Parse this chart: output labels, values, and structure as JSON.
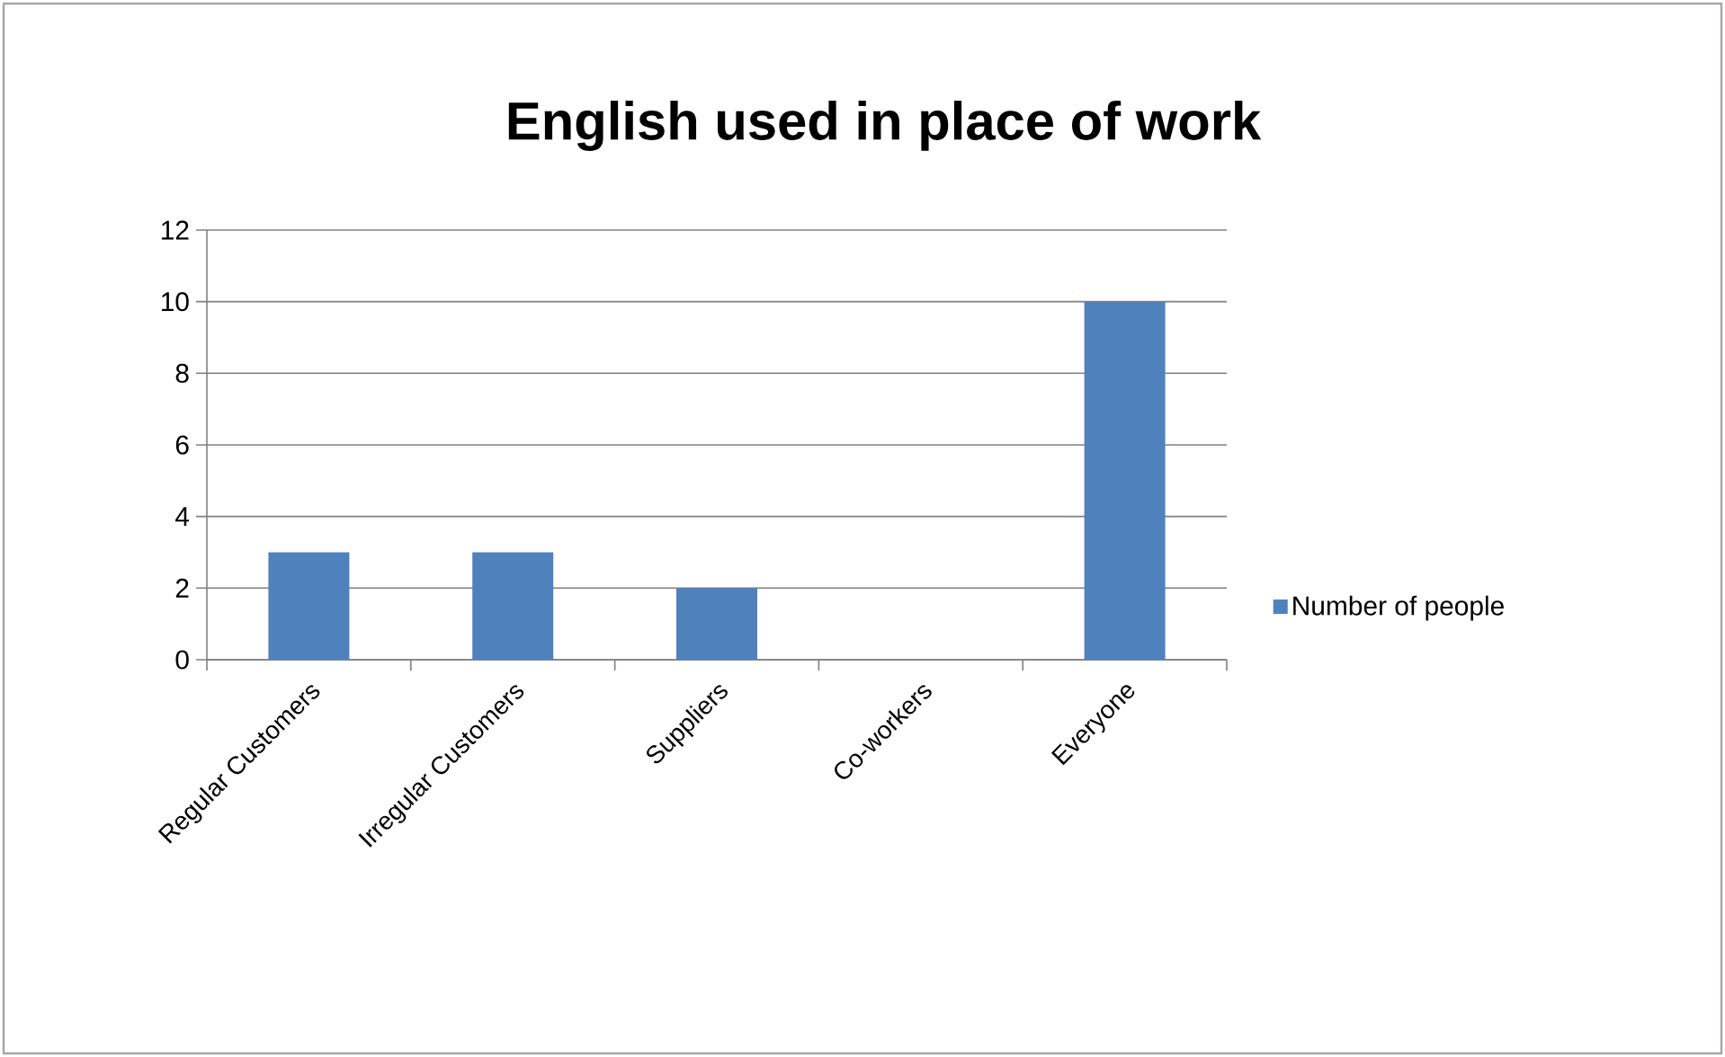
{
  "chart_data": {
    "type": "bar",
    "title": "English used in place of work",
    "categories": [
      "Regular Customers",
      "Irregular Customers",
      "Suppliers",
      "Co-workers",
      "Everyone"
    ],
    "series": [
      {
        "name": "Number of people",
        "color": "#4f81bd",
        "values": [
          3,
          3,
          2,
          0,
          10
        ]
      }
    ],
    "ylim": [
      0,
      12
    ],
    "yticks": [
      0,
      2,
      4,
      6,
      8,
      10,
      12
    ],
    "grid": "y",
    "legend": "right"
  }
}
